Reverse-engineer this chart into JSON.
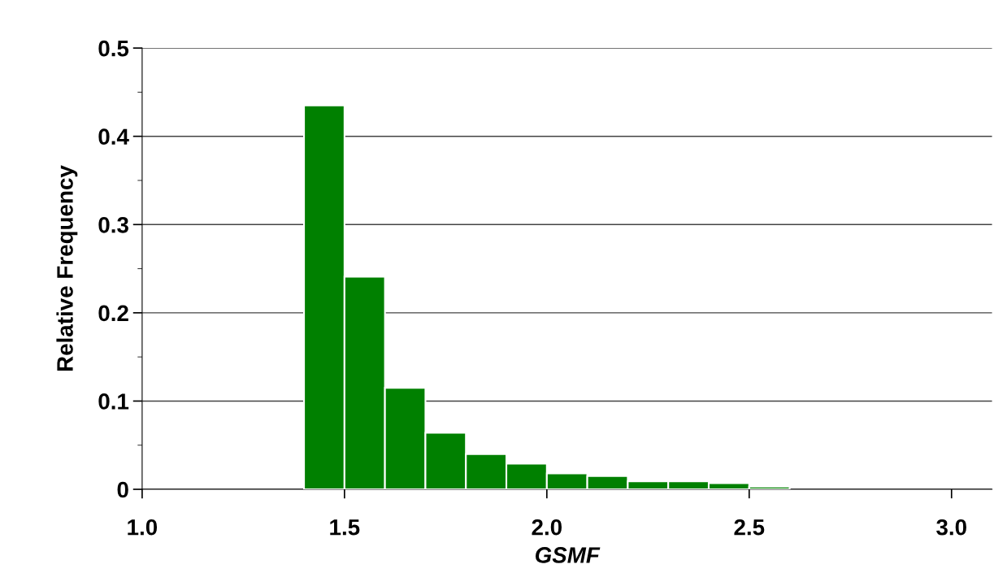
{
  "chart_data": {
    "type": "histogram",
    "xlabel": "GSMF",
    "ylabel": "Relative Frequency",
    "bins": [
      1.4,
      1.5,
      1.6,
      1.7,
      1.8,
      1.9,
      2.0,
      2.1,
      2.2,
      2.3,
      2.4,
      2.5,
      2.6
    ],
    "values": [
      0.435,
      0.241,
      0.115,
      0.064,
      0.04,
      0.029,
      0.018,
      0.015,
      0.009,
      0.009,
      0.007,
      0.003
    ],
    "color": "#008000",
    "xlim": [
      1.0,
      3.1
    ],
    "xticks": [
      {
        "value": 1.0,
        "label": "1.0"
      },
      {
        "value": 1.5,
        "label": "1.5"
      },
      {
        "value": 2.0,
        "label": "2.0"
      },
      {
        "value": 2.5,
        "label": "2.5"
      },
      {
        "value": 3.0,
        "label": "3.0"
      }
    ],
    "ylim": [
      0,
      0.5
    ],
    "yticks": [
      0,
      0.1,
      0.2,
      0.3,
      0.4,
      0.5
    ],
    "grid": "y"
  }
}
